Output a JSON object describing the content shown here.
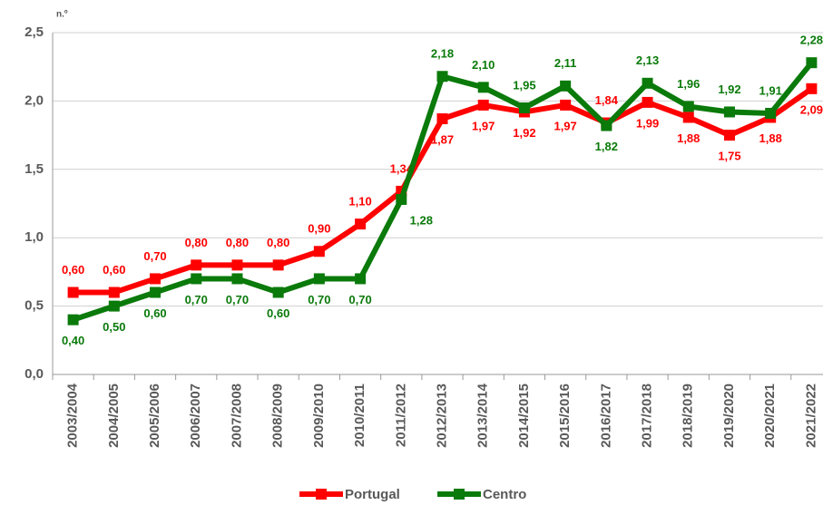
{
  "chart_data": {
    "type": "line",
    "y_unit_label": "n.º",
    "categories": [
      "2003/2004",
      "2004/2005",
      "2005/2006",
      "2006/2007",
      "2007/2008",
      "2008/2009",
      "2009/2010",
      "2010/2011",
      "2011/2012",
      "2012/2013",
      "2013/2014",
      "2014/2015",
      "2015/2016",
      "2016/2017",
      "2017/2018",
      "2018/2019",
      "2019/2020",
      "2020/2021",
      "2021/2022"
    ],
    "series": [
      {
        "name": "Portugal",
        "color": "#ff0000",
        "values": [
          0.6,
          0.6,
          0.7,
          0.8,
          0.8,
          0.8,
          0.9,
          1.1,
          1.34,
          1.87,
          1.97,
          1.92,
          1.97,
          1.84,
          1.99,
          1.88,
          1.75,
          1.88,
          2.09
        ],
        "value_labels": [
          "0,60",
          "0,60",
          "0,70",
          "0,80",
          "0,80",
          "0,80",
          "0,90",
          "1,10",
          "1,34",
          "1,87",
          "1,97",
          "1,92",
          "1,97",
          "1,84",
          "1,99",
          "1,88",
          "1,75",
          "1,88",
          "2,09"
        ]
      },
      {
        "name": "Centro",
        "color": "#0a7a0a",
        "values": [
          0.4,
          0.5,
          0.6,
          0.7,
          0.7,
          0.6,
          0.7,
          0.7,
          1.28,
          2.18,
          2.1,
          1.95,
          2.11,
          1.82,
          2.13,
          1.96,
          1.92,
          1.91,
          2.28
        ],
        "value_labels": [
          "0,40",
          "0,50",
          "0,60",
          "0,70",
          "0,70",
          "0,60",
          "0,70",
          "0,70",
          "1,28",
          "2,18",
          "2,10",
          "1,95",
          "2,11",
          "1,82",
          "2,13",
          "1,96",
          "1,92",
          "1,91",
          "2,28"
        ]
      }
    ],
    "ylim": [
      0,
      2.5
    ],
    "yticks": [
      {
        "value": 0,
        "label": "0,0"
      },
      {
        "value": 0.5,
        "label": "0,5"
      },
      {
        "value": 1,
        "label": "1,0"
      },
      {
        "value": 1.5,
        "label": "1,5"
      },
      {
        "value": 2,
        "label": "2,0"
      },
      {
        "value": 2.5,
        "label": "2,5"
      }
    ],
    "grid": true,
    "legend": "bottom"
  }
}
